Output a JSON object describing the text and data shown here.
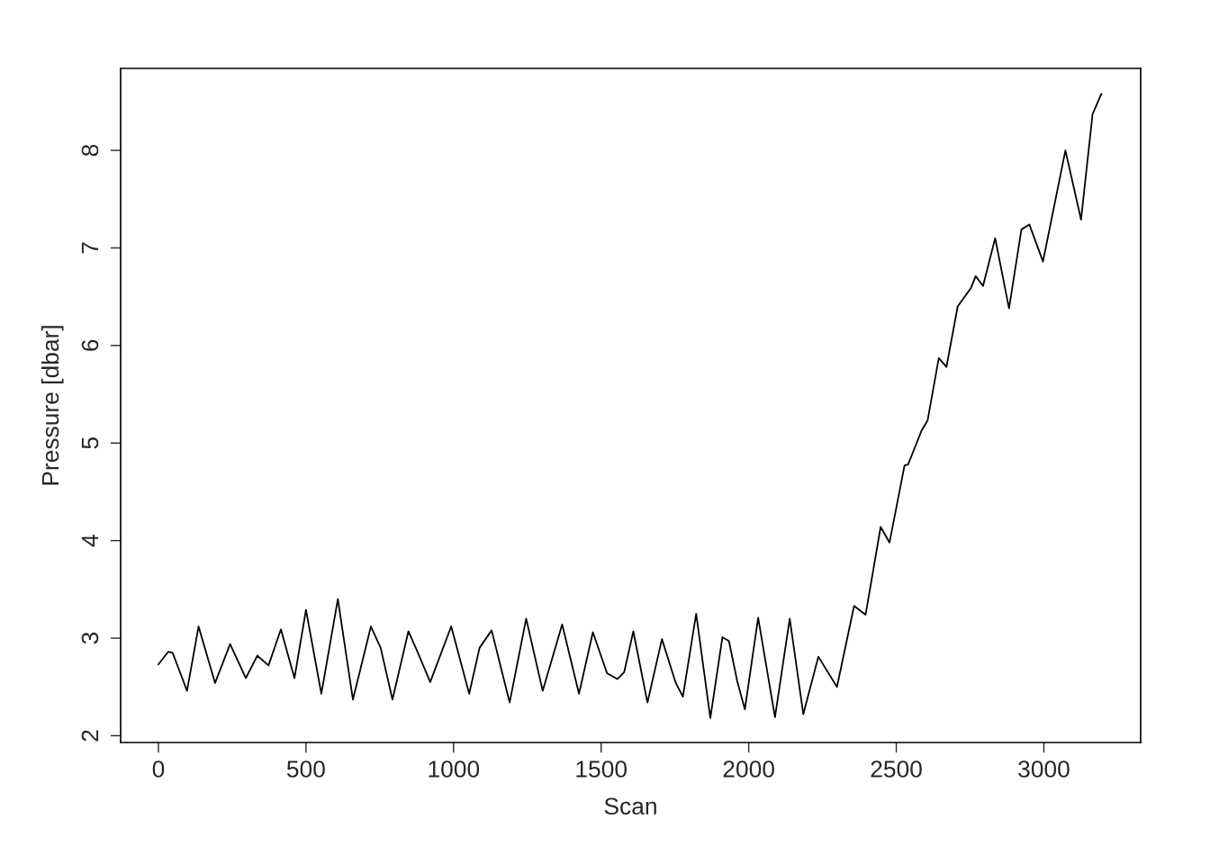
{
  "chart_data": {
    "type": "line",
    "xlabel": "Scan",
    "ylabel": "Pressure [dbar]",
    "x": [
      0,
      33,
      48,
      97,
      136,
      192,
      243,
      296,
      335,
      373,
      415,
      461,
      500,
      552,
      608,
      659,
      720,
      753,
      793,
      847,
      875,
      921,
      992,
      1053,
      1088,
      1129,
      1190,
      1246,
      1302,
      1368,
      1425,
      1472,
      1520,
      1555,
      1578,
      1609,
      1657,
      1706,
      1753,
      1777,
      1822,
      1870,
      1911,
      1933,
      1961,
      1987,
      2032,
      2089,
      2139,
      2185,
      2236,
      2299,
      2357,
      2396,
      2447,
      2477,
      2528,
      2540,
      2586,
      2606,
      2644,
      2670,
      2708,
      2753,
      2769,
      2794,
      2835,
      2882,
      2924,
      2951,
      2997,
      3073,
      3126,
      3165,
      3195
    ],
    "series": [
      {
        "color": "#000000",
        "values": [
          2.73,
          2.86,
          2.85,
          2.46,
          3.12,
          2.54,
          2.94,
          2.59,
          2.82,
          2.72,
          3.09,
          2.59,
          3.29,
          2.43,
          3.4,
          2.37,
          3.12,
          2.9,
          2.37,
          3.07,
          2.88,
          2.55,
          3.12,
          2.43,
          2.9,
          3.08,
          2.34,
          3.2,
          2.46,
          3.14,
          2.43,
          3.06,
          2.64,
          2.58,
          2.65,
          3.07,
          2.34,
          2.99,
          2.54,
          2.4,
          3.25,
          2.18,
          3.01,
          2.97,
          2.56,
          2.27,
          3.21,
          2.19,
          3.2,
          2.22,
          2.81,
          2.5,
          3.33,
          3.24,
          4.14,
          3.98,
          4.77,
          4.78,
          5.13,
          5.23,
          5.87,
          5.78,
          6.4,
          6.59,
          6.71,
          6.61,
          7.1,
          6.38,
          7.19,
          7.24,
          6.86,
          8.0,
          7.29,
          8.37,
          8.58
        ]
      }
    ],
    "xlim": [
      -128,
      3328
    ],
    "ylim": [
      1.93,
      8.84
    ],
    "xticks": [
      0,
      500,
      1000,
      1500,
      2000,
      2500,
      3000
    ],
    "yticks": [
      2,
      3,
      4,
      5,
      6,
      7,
      8
    ],
    "line_style": "solid"
  }
}
